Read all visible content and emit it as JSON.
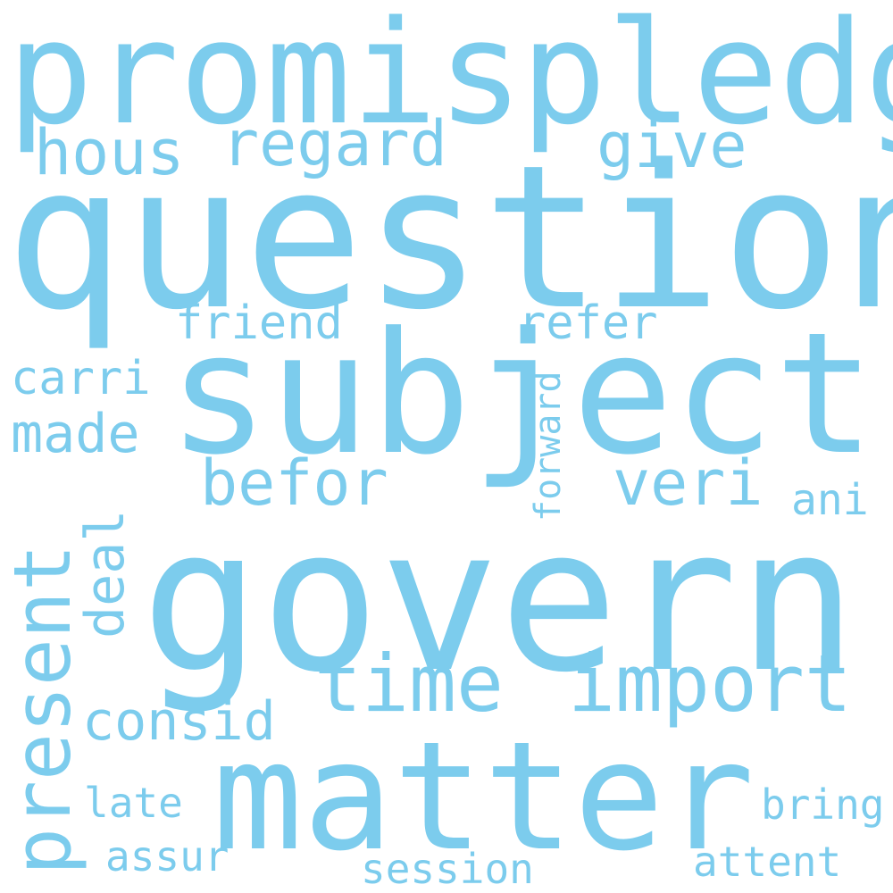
{
  "words": {
    "question": "question",
    "govern": "govern",
    "subject": "subject",
    "matter": "matter",
    "promis": "promis",
    "pledg": "pledg",
    "present": "present",
    "import": "import",
    "time": "time",
    "regard": "regard",
    "hous": "hous",
    "give": "give",
    "befor": "befor",
    "consid": "consid",
    "veri": "veri",
    "deal": "deal",
    "friend": "friend",
    "made": "made",
    "carri": "carri",
    "refer": "refer",
    "forward": "forward",
    "ani": "ani",
    "late": "late",
    "bring": "bring",
    "assur": "assur",
    "attent": "attent",
    "session": "session"
  },
  "colors": {
    "word": "#7ccced",
    "background": "#ffffff"
  }
}
